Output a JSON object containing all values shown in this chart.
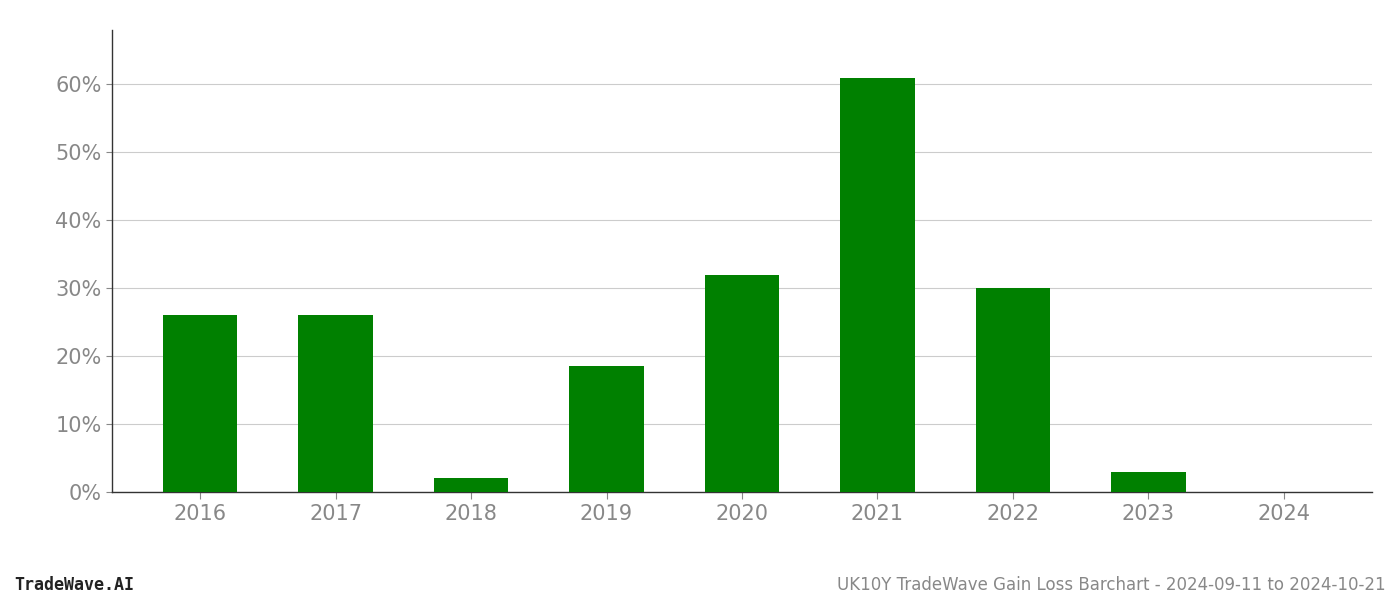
{
  "years": [
    "2016",
    "2017",
    "2018",
    "2019",
    "2020",
    "2021",
    "2022",
    "2023",
    "2024"
  ],
  "values": [
    0.26,
    0.26,
    0.02,
    0.185,
    0.32,
    0.61,
    0.3,
    0.03,
    0.0
  ],
  "bar_color": "#008000",
  "background_color": "#ffffff",
  "grid_color": "#cccccc",
  "axis_color": "#333333",
  "tick_color": "#888888",
  "footer_left": "TradeWave.AI",
  "footer_right": "UK10Y TradeWave Gain Loss Barchart - 2024-09-11 to 2024-10-21",
  "ylim": [
    0,
    0.68
  ],
  "yticks": [
    0.0,
    0.1,
    0.2,
    0.3,
    0.4,
    0.5,
    0.6
  ],
  "bar_width": 0.55,
  "tick_fontsize": 15,
  "footer_fontsize": 12
}
